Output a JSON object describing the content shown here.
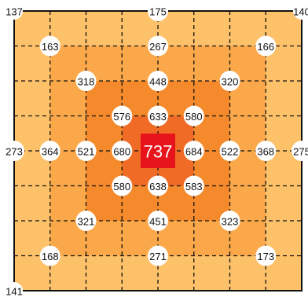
{
  "colors": {
    "zone_outer": "#fdc16a",
    "zone_2": "#faa84a",
    "zone_3": "#f58a2c",
    "zone_4": "#f06c26",
    "center_cell": "#e8141b",
    "grid_line": "#111111",
    "marker_fill": "#ffffff",
    "label_text": "#111111",
    "center_text": "#ffffff"
  },
  "grid": {
    "cols": 8,
    "rows": 8,
    "grid_line_style": "dashed"
  },
  "zones": [
    {
      "level": 1,
      "color_key": "zone_outer"
    },
    {
      "level": 2,
      "color_key": "zone_2"
    },
    {
      "level": 3,
      "color_key": "zone_3"
    },
    {
      "level": 4,
      "color_key": "zone_4"
    },
    {
      "level": 5,
      "color_key": "center_cell"
    }
  ],
  "center": {
    "value": "737"
  },
  "markers": [
    {
      "gx": 0,
      "gy": 0,
      "value": "137",
      "style": "corner"
    },
    {
      "gx": 4,
      "gy": 0,
      "value": "175",
      "style": "edge"
    },
    {
      "gx": 8,
      "gy": 0,
      "value": "140",
      "style": "corner"
    },
    {
      "gx": 1,
      "gy": 1,
      "value": "163"
    },
    {
      "gx": 4,
      "gy": 1,
      "value": "267"
    },
    {
      "gx": 7,
      "gy": 1,
      "value": "166"
    },
    {
      "gx": 2,
      "gy": 2,
      "value": "318"
    },
    {
      "gx": 4,
      "gy": 2,
      "value": "448"
    },
    {
      "gx": 6,
      "gy": 2,
      "value": "320"
    },
    {
      "gx": 3,
      "gy": 3,
      "value": "576"
    },
    {
      "gx": 4,
      "gy": 3,
      "value": "633"
    },
    {
      "gx": 5,
      "gy": 3,
      "value": "580"
    },
    {
      "gx": 0,
      "gy": 4,
      "value": "273",
      "style": "edge"
    },
    {
      "gx": 1,
      "gy": 4,
      "value": "364"
    },
    {
      "gx": 2,
      "gy": 4,
      "value": "521"
    },
    {
      "gx": 3,
      "gy": 4,
      "value": "680"
    },
    {
      "gx": 5,
      "gy": 4,
      "value": "684"
    },
    {
      "gx": 6,
      "gy": 4,
      "value": "522"
    },
    {
      "gx": 7,
      "gy": 4,
      "value": "368"
    },
    {
      "gx": 8,
      "gy": 4,
      "value": "275",
      "style": "edge"
    },
    {
      "gx": 3,
      "gy": 5,
      "value": "580"
    },
    {
      "gx": 4,
      "gy": 5,
      "value": "638"
    },
    {
      "gx": 5,
      "gy": 5,
      "value": "583"
    },
    {
      "gx": 2,
      "gy": 6,
      "value": "321"
    },
    {
      "gx": 4,
      "gy": 6,
      "value": "451"
    },
    {
      "gx": 6,
      "gy": 6,
      "value": "323"
    },
    {
      "gx": 1,
      "gy": 7,
      "value": "168"
    },
    {
      "gx": 4,
      "gy": 7,
      "value": "271"
    },
    {
      "gx": 7,
      "gy": 7,
      "value": "173"
    },
    {
      "gx": 0,
      "gy": 8,
      "value": "141",
      "style": "corner"
    }
  ]
}
